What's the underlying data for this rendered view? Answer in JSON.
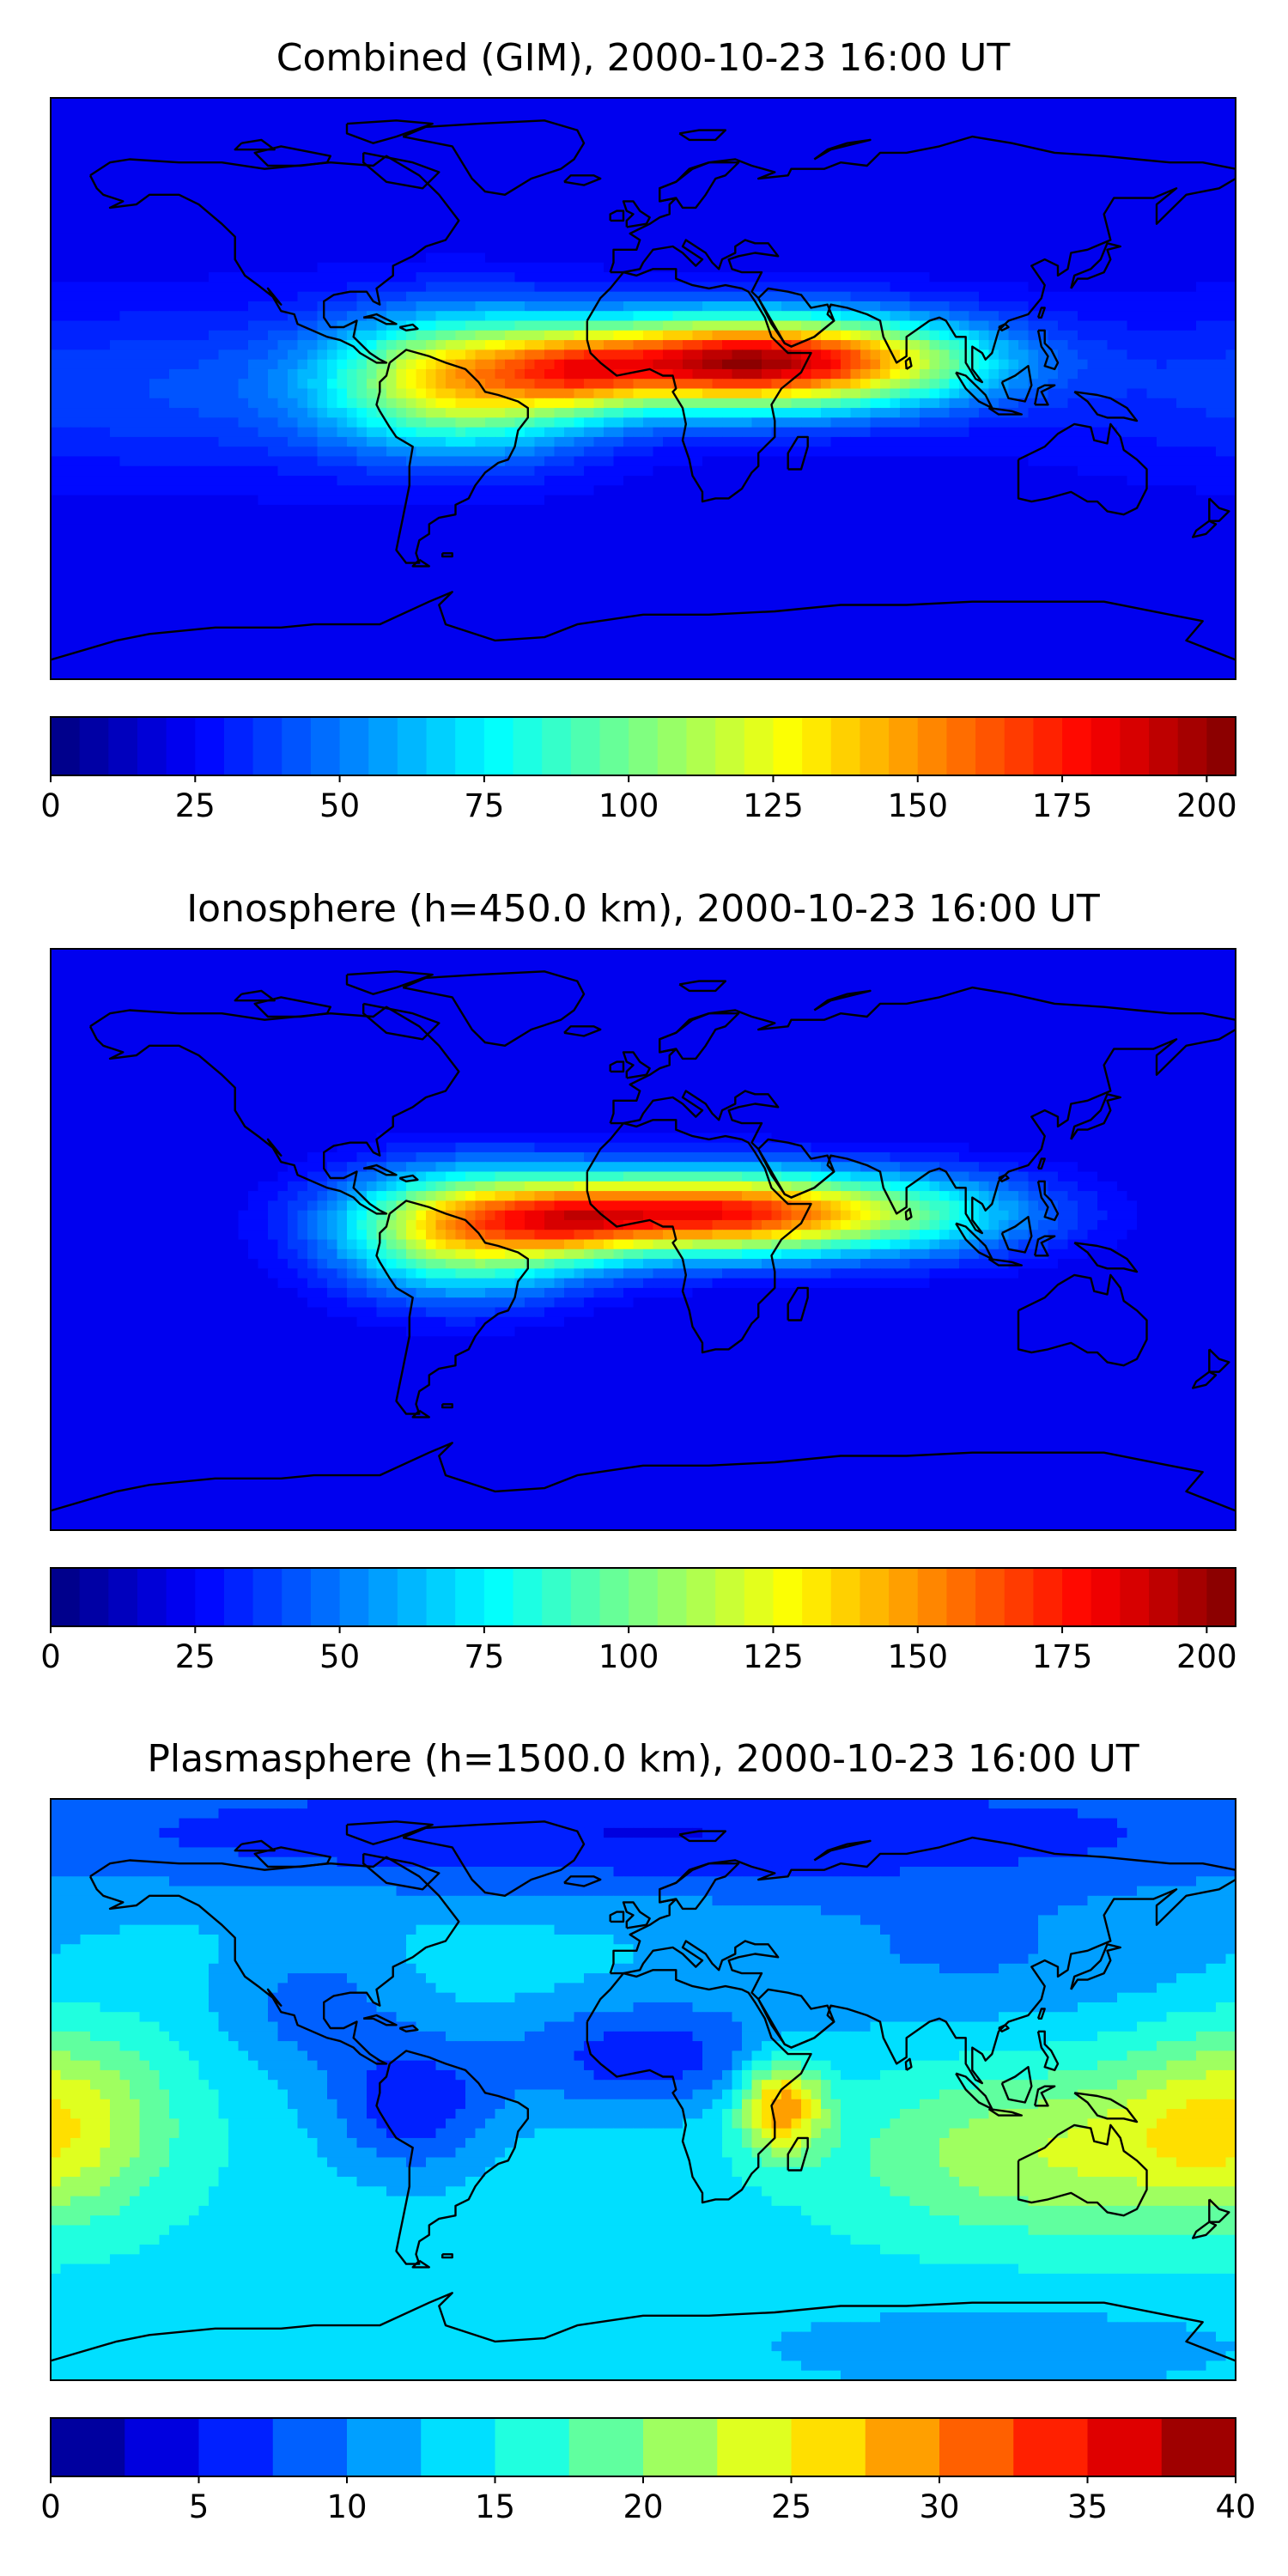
{
  "chart_data": [
    {
      "type": "heatmap",
      "title": "Combined (GIM), 2000-10-23 16:00 UT",
      "quantity": "TEC",
      "colormap": "jet",
      "vmin": 0,
      "vmax": 205,
      "levels": 41,
      "ticks": [
        0,
        25,
        50,
        75,
        100,
        125,
        150,
        175,
        200
      ],
      "tick_labels": [
        "0",
        "25",
        "50",
        "75",
        "100",
        "125",
        "150",
        "175",
        "200"
      ],
      "background_level": 22,
      "features": [
        {
          "lon": 30,
          "lat": 8,
          "sigma_lon": 42,
          "sigma_lat": 10,
          "peak": 175
        },
        {
          "lon": -20,
          "lat": 4,
          "sigma_lon": 14,
          "sigma_lat": 8,
          "peak": 30
        },
        {
          "lon": 80,
          "lat": 10,
          "sigma_lon": 25,
          "sigma_lat": 9,
          "peak": 20
        },
        {
          "lon": -55,
          "lat": 2,
          "sigma_lon": 28,
          "sigma_lat": 14,
          "peak": 100
        },
        {
          "lon": -140,
          "lat": 0,
          "sigma_lon": 70,
          "sigma_lat": 18,
          "peak": 18
        }
      ]
    },
    {
      "type": "heatmap",
      "title": "Ionosphere  (h=450.0 km), 2000-10-23 16:00 UT",
      "quantity": "TEC",
      "colormap": "jet",
      "vmin": 0,
      "vmax": 205,
      "levels": 41,
      "ticks": [
        0,
        25,
        50,
        75,
        100,
        125,
        150,
        175,
        200
      ],
      "tick_labels": [
        "0",
        "25",
        "50",
        "75",
        "100",
        "125",
        "150",
        "175",
        "200"
      ],
      "background_level": 20,
      "features": [
        {
          "lon": 20,
          "lat": 8,
          "sigma_lon": 48,
          "sigma_lat": 9,
          "peak": 160
        },
        {
          "lon": -20,
          "lat": 4,
          "sigma_lon": 15,
          "sigma_lat": 8,
          "peak": 25
        },
        {
          "lon": -55,
          "lat": 2,
          "sigma_lon": 26,
          "sigma_lat": 13,
          "peak": 95
        },
        {
          "lon": 95,
          "lat": 8,
          "sigma_lon": 25,
          "sigma_lat": 10,
          "peak": 15
        }
      ]
    },
    {
      "type": "heatmap",
      "title": "Plasmasphere (h=1500.0 km), 2000-10-23 16:00 UT",
      "quantity": "TEC",
      "colormap": "jet",
      "vmin": 0,
      "vmax": 40,
      "levels": 16,
      "ticks": [
        0,
        5,
        10,
        15,
        20,
        25,
        30,
        35,
        40
      ],
      "tick_labels": [
        "0",
        "5",
        "10",
        "15",
        "20",
        "25",
        "30",
        "35",
        "40"
      ],
      "background_level": 14,
      "features": [
        {
          "lon": 42,
          "lat": -5,
          "sigma_lon": 9,
          "sigma_lat": 10,
          "peak": 16
        },
        {
          "lon": 120,
          "lat": -20,
          "sigma_lon": 40,
          "sigma_lat": 18,
          "peak": 8
        },
        {
          "lon": -180,
          "lat": -10,
          "sigma_lon": 25,
          "sigma_lat": 20,
          "peak": 10
        },
        {
          "lon": 0,
          "lat": 10,
          "sigma_lon": 30,
          "sigma_lat": 12,
          "peak": -8
        },
        {
          "lon": -70,
          "lat": -5,
          "sigma_lon": 18,
          "sigma_lat": 15,
          "peak": -8
        },
        {
          "lon": -100,
          "lat": 25,
          "sigma_lon": 20,
          "sigma_lat": 15,
          "peak": -5
        },
        {
          "lon": 0,
          "lat": 80,
          "sigma_lon": 180,
          "sigma_lat": 15,
          "peak": -9
        },
        {
          "lon": 100,
          "lat": 40,
          "sigma_lon": 60,
          "sigma_lat": 15,
          "peak": -4
        },
        {
          "lon": 110,
          "lat": -80,
          "sigma_lon": 60,
          "sigma_lat": 10,
          "peak": -3
        }
      ]
    }
  ]
}
